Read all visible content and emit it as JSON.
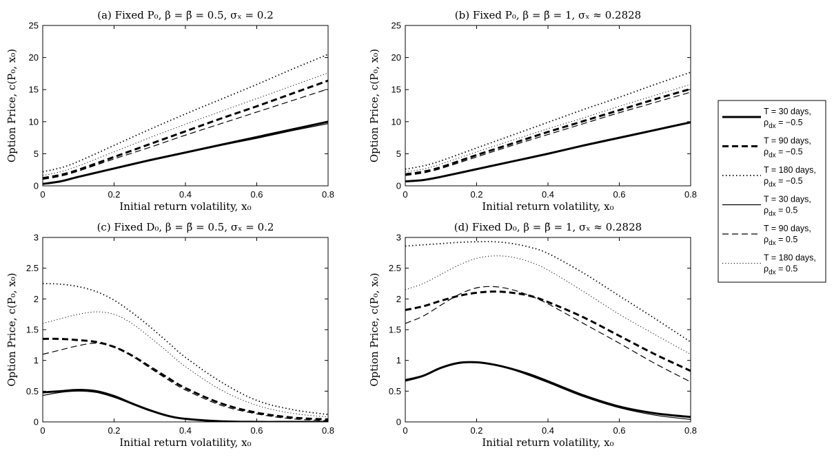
{
  "chart_data": [
    {
      "type": "line",
      "title": "(a) Fixed P₀, β = β̃ = 0.5, σₓ = 0.2",
      "xlabel": "Initial return volatility, x₀",
      "ylabel": "Option Price, c(P₀, x₀)",
      "xlim": [
        0,
        0.8
      ],
      "ylim": [
        0,
        25
      ],
      "xticks": [
        "0",
        "0.2",
        "0.4",
        "0.6",
        "0.8"
      ],
      "yticks": [
        "0",
        "5",
        "10",
        "15",
        "20",
        "25"
      ],
      "series": [
        {
          "name": "T = 30 days, ρdx = −0.5",
          "x": [
            0,
            0.05,
            0.1,
            0.2,
            0.3,
            0.4,
            0.5,
            0.6,
            0.7,
            0.8
          ],
          "y": [
            0.3,
            0.7,
            1.4,
            2.7,
            4.0,
            5.2,
            6.4,
            7.6,
            8.8,
            10.0
          ]
        },
        {
          "name": "T = 90 days, ρdx = −0.5",
          "x": [
            0,
            0.05,
            0.1,
            0.2,
            0.3,
            0.4,
            0.5,
            0.6,
            0.7,
            0.8
          ],
          "y": [
            1.2,
            1.7,
            2.5,
            4.5,
            6.5,
            8.5,
            10.5,
            12.4,
            14.4,
            16.4
          ]
        },
        {
          "name": "T = 180 days, ρdx = −0.5",
          "x": [
            0,
            0.05,
            0.1,
            0.2,
            0.3,
            0.4,
            0.5,
            0.6,
            0.7,
            0.8
          ],
          "y": [
            2.2,
            2.8,
            3.8,
            6.3,
            8.8,
            11.2,
            13.5,
            15.8,
            18.2,
            20.5
          ]
        },
        {
          "name": "T = 30 days, ρdx = 0.5",
          "x": [
            0,
            0.05,
            0.1,
            0.2,
            0.3,
            0.4,
            0.5,
            0.6,
            0.7,
            0.8
          ],
          "y": [
            0.3,
            0.7,
            1.4,
            2.7,
            3.9,
            5.1,
            6.3,
            7.4,
            8.6,
            9.7
          ]
        },
        {
          "name": "T = 90 days, ρdx = 0.5",
          "x": [
            0,
            0.05,
            0.1,
            0.2,
            0.3,
            0.4,
            0.5,
            0.6,
            0.7,
            0.8
          ],
          "y": [
            1.0,
            1.5,
            2.3,
            4.2,
            6.0,
            7.9,
            9.7,
            11.5,
            13.3,
            15.1
          ]
        },
        {
          "name": "T = 180 days, ρdx = 0.5",
          "x": [
            0,
            0.05,
            0.1,
            0.2,
            0.3,
            0.4,
            0.5,
            0.6,
            0.7,
            0.8
          ],
          "y": [
            1.6,
            2.2,
            3.1,
            5.3,
            7.5,
            9.6,
            11.6,
            13.6,
            15.6,
            17.6
          ]
        }
      ]
    },
    {
      "type": "line",
      "title": "(b) Fixed P₀, β = β̃ = 1, σₓ ≈ 0.2828",
      "xlabel": "Initial return volatility, x₀",
      "ylabel": "Option Price, c(P₀, x₀)",
      "xlim": [
        0,
        0.8
      ],
      "ylim": [
        0,
        25
      ],
      "xticks": [
        "0",
        "0.2",
        "0.4",
        "0.6",
        "0.8"
      ],
      "yticks": [
        "0",
        "5",
        "10",
        "15",
        "20",
        "25"
      ],
      "series": [
        {
          "name": "T = 30 days, ρdx = −0.5",
          "x": [
            0,
            0.05,
            0.1,
            0.2,
            0.3,
            0.4,
            0.5,
            0.6,
            0.7,
            0.8
          ],
          "y": [
            0.7,
            0.9,
            1.4,
            2.6,
            3.8,
            5.0,
            6.3,
            7.5,
            8.7,
            9.9
          ]
        },
        {
          "name": "T = 90 days, ρdx = −0.5",
          "x": [
            0,
            0.05,
            0.1,
            0.2,
            0.3,
            0.4,
            0.5,
            0.6,
            0.7,
            0.8
          ],
          "y": [
            1.8,
            2.2,
            2.9,
            4.8,
            6.6,
            8.4,
            10.1,
            11.8,
            13.5,
            15.1
          ]
        },
        {
          "name": "T = 180 days, ρdx = −0.5",
          "x": [
            0,
            0.05,
            0.1,
            0.2,
            0.3,
            0.4,
            0.5,
            0.6,
            0.7,
            0.8
          ],
          "y": [
            2.6,
            3.1,
            3.9,
            5.9,
            7.9,
            9.9,
            11.9,
            13.8,
            15.8,
            17.7
          ]
        },
        {
          "name": "T = 30 days, ρdx = 0.5",
          "x": [
            0,
            0.05,
            0.1,
            0.2,
            0.3,
            0.4,
            0.5,
            0.6,
            0.7,
            0.8
          ],
          "y": [
            0.7,
            0.9,
            1.4,
            2.6,
            3.8,
            5.0,
            6.2,
            7.4,
            8.6,
            9.9
          ]
        },
        {
          "name": "T = 90 days, ρdx = 0.5",
          "x": [
            0,
            0.05,
            0.1,
            0.2,
            0.3,
            0.4,
            0.5,
            0.6,
            0.7,
            0.8
          ],
          "y": [
            1.6,
            2.0,
            2.7,
            4.5,
            6.3,
            8.0,
            9.7,
            11.4,
            13.0,
            14.6
          ]
        },
        {
          "name": "T = 180 days, ρdx = 0.5",
          "x": [
            0,
            0.05,
            0.1,
            0.2,
            0.3,
            0.4,
            0.5,
            0.6,
            0.7,
            0.8
          ],
          "y": [
            2.2,
            2.6,
            3.4,
            5.3,
            7.1,
            8.9,
            10.6,
            12.4,
            14.1,
            15.8
          ]
        }
      ]
    },
    {
      "type": "line",
      "title": "(c) Fixed D₀, β = β̃ = 0.5, σₓ = 0.2",
      "xlabel": "Initial return volatility, x₀",
      "ylabel": "Option Price, c(P₀, x₀)",
      "xlim": [
        0,
        0.8
      ],
      "ylim": [
        0,
        3
      ],
      "xticks": [
        "0",
        "0.2",
        "0.4",
        "0.6",
        "0.8"
      ],
      "yticks": [
        "0",
        "0.5",
        "1",
        "1.5",
        "2",
        "2.5",
        "3"
      ],
      "series": [
        {
          "name": "T = 30 days, ρdx = −0.5",
          "x": [
            0,
            0.05,
            0.1,
            0.15,
            0.2,
            0.25,
            0.3,
            0.35,
            0.4,
            0.5,
            0.6,
            0.7,
            0.8
          ],
          "y": [
            0.48,
            0.5,
            0.52,
            0.5,
            0.42,
            0.3,
            0.19,
            0.1,
            0.05,
            0.01,
            0.0,
            0.0,
            0.0
          ]
        },
        {
          "name": "T = 90 days, ρdx = −0.5",
          "x": [
            0,
            0.05,
            0.1,
            0.15,
            0.2,
            0.25,
            0.3,
            0.35,
            0.4,
            0.5,
            0.6,
            0.7,
            0.8
          ],
          "y": [
            1.35,
            1.35,
            1.33,
            1.3,
            1.22,
            1.08,
            0.9,
            0.72,
            0.55,
            0.3,
            0.15,
            0.07,
            0.04
          ]
        },
        {
          "name": "T = 180 days, ρdx = −0.5",
          "x": [
            0,
            0.05,
            0.1,
            0.15,
            0.2,
            0.25,
            0.3,
            0.35,
            0.4,
            0.5,
            0.6,
            0.7,
            0.8
          ],
          "y": [
            2.25,
            2.24,
            2.2,
            2.12,
            1.98,
            1.78,
            1.55,
            1.3,
            1.05,
            0.65,
            0.35,
            0.2,
            0.12
          ]
        },
        {
          "name": "T = 30 days, ρdx = 0.5",
          "x": [
            0,
            0.05,
            0.1,
            0.15,
            0.2,
            0.25,
            0.3,
            0.35,
            0.4,
            0.5,
            0.6,
            0.7,
            0.8
          ],
          "y": [
            0.43,
            0.48,
            0.5,
            0.48,
            0.4,
            0.29,
            0.18,
            0.1,
            0.05,
            0.01,
            0.0,
            0.0,
            0.0
          ]
        },
        {
          "name": "T = 90 days, ρdx = 0.5",
          "x": [
            0,
            0.05,
            0.1,
            0.15,
            0.2,
            0.25,
            0.3,
            0.35,
            0.4,
            0.5,
            0.6,
            0.7,
            0.8
          ],
          "y": [
            1.1,
            1.17,
            1.24,
            1.28,
            1.22,
            1.07,
            0.88,
            0.69,
            0.52,
            0.27,
            0.13,
            0.05,
            0.02
          ]
        },
        {
          "name": "T = 180 days, ρdx = 0.5",
          "x": [
            0,
            0.05,
            0.1,
            0.15,
            0.2,
            0.25,
            0.3,
            0.35,
            0.4,
            0.5,
            0.6,
            0.7,
            0.8
          ],
          "y": [
            1.6,
            1.68,
            1.75,
            1.79,
            1.75,
            1.6,
            1.38,
            1.14,
            0.9,
            0.52,
            0.27,
            0.14,
            0.08
          ]
        }
      ]
    },
    {
      "type": "line",
      "title": "(d) Fixed D₀, β = β̃ = 1, σₓ ≈ 0.2828",
      "xlabel": "Initial return volatility, x₀",
      "ylabel": "Option Price, c(P₀, x₀)",
      "xlim": [
        0,
        0.8
      ],
      "ylim": [
        0,
        3
      ],
      "xticks": [
        "0",
        "0.2",
        "0.4",
        "0.6",
        "0.8"
      ],
      "yticks": [
        "0",
        "0.5",
        "1",
        "1.5",
        "2",
        "2.5",
        "3"
      ],
      "series": [
        {
          "name": "T = 30 days, ρdx = −0.5",
          "x": [
            0,
            0.05,
            0.1,
            0.15,
            0.2,
            0.25,
            0.3,
            0.35,
            0.4,
            0.5,
            0.6,
            0.7,
            0.8
          ],
          "y": [
            0.68,
            0.75,
            0.88,
            0.96,
            0.97,
            0.93,
            0.86,
            0.77,
            0.66,
            0.43,
            0.25,
            0.14,
            0.08
          ]
        },
        {
          "name": "T = 90 days, ρdx = −0.5",
          "x": [
            0,
            0.05,
            0.1,
            0.15,
            0.2,
            0.25,
            0.3,
            0.35,
            0.4,
            0.5,
            0.6,
            0.7,
            0.8
          ],
          "y": [
            1.82,
            1.88,
            1.97,
            2.05,
            2.1,
            2.12,
            2.1,
            2.05,
            1.95,
            1.7,
            1.4,
            1.1,
            0.83
          ]
        },
        {
          "name": "T = 180 days, ρdx = −0.5",
          "x": [
            0,
            0.05,
            0.1,
            0.15,
            0.2,
            0.25,
            0.3,
            0.35,
            0.4,
            0.5,
            0.6,
            0.7,
            0.8
          ],
          "y": [
            2.86,
            2.88,
            2.9,
            2.92,
            2.93,
            2.93,
            2.9,
            2.84,
            2.74,
            2.42,
            2.05,
            1.68,
            1.3
          ]
        },
        {
          "name": "T = 30 days, ρdx = 0.5",
          "x": [
            0,
            0.05,
            0.1,
            0.15,
            0.2,
            0.25,
            0.3,
            0.35,
            0.4,
            0.5,
            0.6,
            0.7,
            0.8
          ],
          "y": [
            0.66,
            0.74,
            0.87,
            0.95,
            0.97,
            0.93,
            0.85,
            0.75,
            0.64,
            0.41,
            0.23,
            0.11,
            0.04
          ]
        },
        {
          "name": "T = 90 days, ρdx = 0.5",
          "x": [
            0,
            0.05,
            0.1,
            0.15,
            0.2,
            0.25,
            0.3,
            0.35,
            0.4,
            0.5,
            0.6,
            0.7,
            0.8
          ],
          "y": [
            1.6,
            1.72,
            1.9,
            2.07,
            2.18,
            2.2,
            2.15,
            2.05,
            1.92,
            1.6,
            1.28,
            0.95,
            0.65
          ]
        },
        {
          "name": "T = 180 days, ρdx = 0.5",
          "x": [
            0,
            0.05,
            0.1,
            0.15,
            0.2,
            0.25,
            0.3,
            0.35,
            0.4,
            0.5,
            0.6,
            0.7,
            0.8
          ],
          "y": [
            2.15,
            2.25,
            2.4,
            2.55,
            2.66,
            2.7,
            2.68,
            2.6,
            2.47,
            2.12,
            1.75,
            1.42,
            1.1
          ]
        }
      ]
    }
  ],
  "legend": {
    "placement": "right",
    "entries": [
      {
        "line1": "T = 30 days,",
        "line2": "ρ",
        "sub": "dx",
        "tail": " = −0.5"
      },
      {
        "line1": "T = 90 days,",
        "line2": "ρ",
        "sub": "dx",
        "tail": " = −0.5"
      },
      {
        "line1": "T = 180 days,",
        "line2": "ρ",
        "sub": "dx",
        "tail": " = −0.5"
      },
      {
        "line1": "T = 30 days,",
        "line2": "ρ",
        "sub": "dx",
        "tail": " = 0.5"
      },
      {
        "line1": "T = 90 days,",
        "line2": "ρ",
        "sub": "dx",
        "tail": " = 0.5"
      },
      {
        "line1": "T = 180 days,",
        "line2": "ρ",
        "sub": "dx",
        "tail": " = 0.5"
      }
    ]
  },
  "colors": {
    "line": "#000000",
    "background": "#ffffff"
  }
}
